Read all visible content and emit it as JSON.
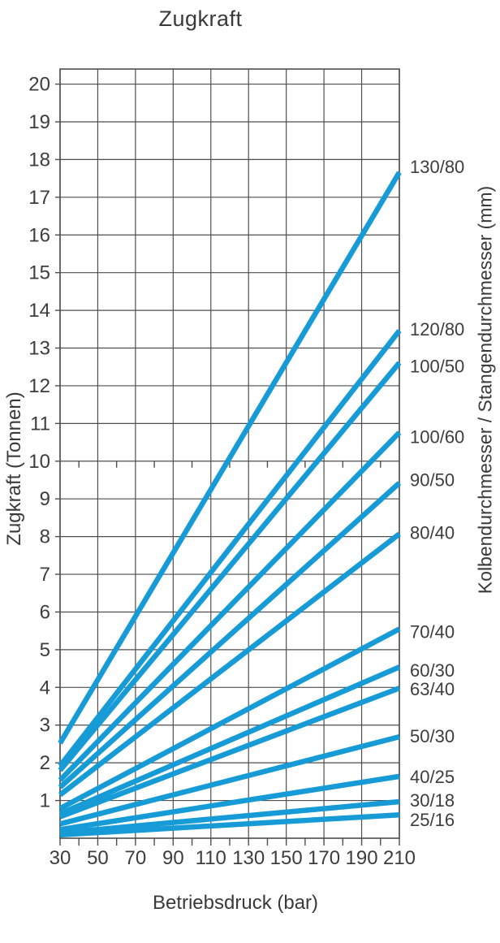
{
  "page": {
    "title": "Zugkraft"
  },
  "axes": {
    "x_title": "Betriebsdruck (bar)",
    "y_title": "Zugkraft (Tonnen)",
    "right_title": "Kolbendurchmesser / Stangendurchmesser (mm)"
  },
  "chart_data": {
    "type": "line",
    "title": "Zugkraft",
    "xlabel": "Betriebsdruck (bar)",
    "ylabel": "Zugkraft (Tonnen)",
    "ylabel_right": "Kolbendurchmesser / Stangendurchmesser (mm)",
    "x_range": [
      30,
      210
    ],
    "y_range": [
      0,
      20.4
    ],
    "x_major_ticks": [
      30,
      50,
      70,
      90,
      110,
      130,
      150,
      170,
      190,
      210
    ],
    "x_minor_step": 10,
    "y_ticks": [
      1,
      2,
      3,
      4,
      5,
      6,
      7,
      8,
      9,
      10,
      11,
      12,
      13,
      14,
      15,
      16,
      17,
      18,
      19,
      20
    ],
    "mid_tick_line_y": 10,
    "grid": true,
    "legend_position": "right-of-line-ends",
    "line_color": "#179bd7",
    "grid_color": "#4e4e4e",
    "text_color": "#3d3d3d",
    "x": [
      30,
      210
    ],
    "series": [
      {
        "name": "130/80",
        "values": [
          2.52,
          17.66
        ],
        "label_dy": -7
      },
      {
        "name": "120/80",
        "values": [
          1.92,
          13.46
        ],
        "label_dy": -2
      },
      {
        "name": "100/50",
        "values": [
          1.8,
          12.61
        ],
        "label_dy": 4
      },
      {
        "name": "100/60",
        "values": [
          1.54,
          10.76
        ],
        "label_dy": 5
      },
      {
        "name": "90/50",
        "values": [
          1.35,
          9.42
        ],
        "label_dy": -4
      },
      {
        "name": "80/40",
        "values": [
          1.15,
          8.07
        ],
        "label_dy": -2
      },
      {
        "name": "70/40",
        "values": [
          0.79,
          5.55
        ],
        "label_dy": 3
      },
      {
        "name": "60/30",
        "values": [
          0.65,
          4.54
        ],
        "label_dy": 4
      },
      {
        "name": "63/40",
        "values": [
          0.57,
          3.98
        ],
        "label_dy": 1
      },
      {
        "name": "50/30",
        "values": [
          0.38,
          2.69
        ],
        "label_dy": -1
      },
      {
        "name": "40/25",
        "values": [
          0.23,
          1.64
        ],
        "label_dy": 0
      },
      {
        "name": "30/18",
        "values": [
          0.14,
          0.97
        ],
        "label_dy": -2
      },
      {
        "name": "25/16",
        "values": [
          0.09,
          0.62
        ],
        "label_dy": 6
      }
    ]
  }
}
